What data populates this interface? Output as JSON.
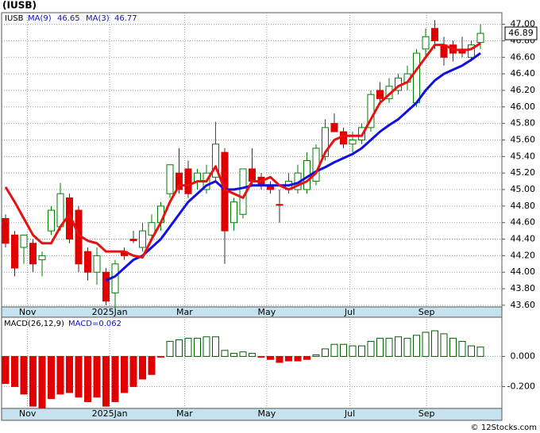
{
  "title": "(IUSB)",
  "watermark": "© 12Stocks.com",
  "chart_data": [
    {
      "type": "candlestick",
      "symbol": "IUSB",
      "last_price": 46.89,
      "ma_legend": [
        {
          "label": "MA(9)",
          "value": 46.65
        },
        {
          "label": "MA(3)",
          "value": 46.77
        }
      ],
      "open": [
        44.65,
        44.45,
        44.3,
        44.35,
        44.15,
        44.5,
        44.55,
        44.9,
        44.75,
        44.25,
        44.0,
        44.0,
        43.75,
        44.25,
        44.4,
        44.3,
        44.45,
        44.6,
        44.95,
        45.2,
        45.25,
        45.1,
        45.0,
        45.15,
        45.45,
        44.6,
        44.7,
        45.25,
        45.15,
        45.05,
        44.82,
        45.0,
        45.0,
        45.0,
        45.1,
        45.4,
        45.8,
        45.7,
        45.55,
        45.6,
        45.75,
        46.2,
        46.1,
        46.2,
        46.3,
        46.05,
        46.7,
        46.95,
        46.75,
        46.75,
        46.7,
        46.6,
        46.78
      ],
      "high": [
        44.7,
        44.5,
        44.45,
        44.4,
        44.25,
        44.8,
        45.08,
        44.95,
        44.8,
        44.3,
        44.3,
        44.05,
        44.15,
        44.3,
        44.5,
        44.6,
        44.7,
        44.85,
        45.3,
        45.5,
        45.35,
        45.25,
        45.3,
        45.82,
        45.5,
        44.9,
        45.25,
        45.5,
        45.2,
        45.1,
        45.0,
        45.2,
        45.3,
        45.45,
        45.55,
        45.85,
        45.92,
        45.75,
        45.7,
        45.8,
        46.2,
        46.3,
        46.35,
        46.4,
        46.5,
        46.7,
        46.95,
        47.05,
        46.85,
        46.8,
        46.85,
        46.8,
        47.0
      ],
      "low": [
        44.3,
        43.95,
        44.1,
        44.0,
        43.95,
        44.45,
        44.5,
        44.35,
        44.0,
        43.9,
        43.85,
        43.6,
        43.55,
        44.15,
        44.35,
        44.25,
        44.4,
        44.5,
        44.9,
        44.95,
        44.9,
        45.0,
        44.95,
        45.1,
        44.1,
        44.5,
        44.65,
        45.05,
        45.0,
        44.95,
        44.6,
        44.95,
        44.95,
        44.95,
        45.05,
        45.35,
        45.7,
        45.5,
        45.45,
        45.55,
        45.7,
        46.05,
        46.05,
        46.15,
        46.2,
        46.0,
        46.6,
        46.7,
        46.5,
        46.55,
        46.6,
        46.55,
        46.7
      ],
      "close": [
        44.35,
        44.05,
        44.45,
        44.1,
        44.2,
        44.75,
        44.95,
        44.4,
        44.1,
        44.0,
        44.2,
        43.65,
        44.1,
        44.2,
        44.38,
        44.5,
        44.6,
        44.8,
        45.3,
        45.0,
        44.95,
        45.2,
        45.2,
        45.55,
        44.5,
        44.85,
        45.25,
        45.1,
        45.05,
        45.0,
        44.81,
        45.1,
        45.2,
        45.35,
        45.5,
        45.75,
        45.7,
        45.55,
        45.6,
        45.75,
        46.15,
        46.1,
        46.25,
        46.35,
        46.4,
        46.65,
        46.85,
        46.8,
        46.6,
        46.65,
        46.65,
        46.75,
        46.89
      ],
      "up_color": "#008000",
      "down_color": "#e00000",
      "series": [
        {
          "name": "MA(9)",
          "color": "#1010e0",
          "values": [
            null,
            null,
            null,
            null,
            null,
            null,
            null,
            null,
            null,
            null,
            null,
            43.9,
            43.95,
            44.05,
            44.15,
            44.2,
            44.3,
            44.4,
            44.55,
            44.7,
            44.85,
            44.95,
            45.05,
            45.1,
            45.0,
            45.0,
            45.02,
            45.05,
            45.05,
            45.05,
            45.05,
            45.05,
            45.08,
            45.15,
            45.22,
            45.27,
            45.33,
            45.38,
            45.43,
            45.5,
            45.6,
            45.7,
            45.78,
            45.85,
            45.95,
            46.05,
            46.2,
            46.32,
            46.4,
            46.45,
            46.5,
            46.57,
            46.65
          ]
        },
        {
          "name": "MA(3)",
          "color": "#e81010",
          "values": [
            45.03,
            44.85,
            44.65,
            44.45,
            44.35,
            44.35,
            44.55,
            44.7,
            44.45,
            44.38,
            44.35,
            44.25,
            44.25,
            44.25,
            44.2,
            44.18,
            44.4,
            44.6,
            44.85,
            45.05,
            45.05,
            45.1,
            45.1,
            45.28,
            45.0,
            44.95,
            44.9,
            45.1,
            45.1,
            45.15,
            45.05,
            45.0,
            45.05,
            45.1,
            45.2,
            45.45,
            45.6,
            45.65,
            45.65,
            45.65,
            45.85,
            46.05,
            46.15,
            46.25,
            46.3,
            46.45,
            46.6,
            46.75,
            46.75,
            46.7,
            46.68,
            46.7,
            46.77
          ]
        }
      ],
      "ylim": [
        43.58,
        47.14
      ],
      "yticks": [
        {
          "value": 43.6,
          "label": "43.60"
        },
        {
          "value": 43.8,
          "label": "43.80"
        },
        {
          "value": 44.0,
          "label": "44.00"
        },
        {
          "value": 44.2,
          "label": "44.20"
        },
        {
          "value": 44.4,
          "label": "44.40"
        },
        {
          "value": 44.6,
          "label": "44.60"
        },
        {
          "value": 44.8,
          "label": "44.80"
        },
        {
          "value": 45.0,
          "label": "45.00"
        },
        {
          "value": 45.2,
          "label": "45.20"
        },
        {
          "value": 45.4,
          "label": "45.40"
        },
        {
          "value": 45.6,
          "label": "45.60"
        },
        {
          "value": 45.8,
          "label": "45.80"
        },
        {
          "value": 46.0,
          "label": "46.00"
        },
        {
          "value": 46.2,
          "label": "46.20"
        },
        {
          "value": 46.4,
          "label": "46.40"
        },
        {
          "value": 46.6,
          "label": "46.60"
        },
        {
          "value": 46.8,
          "label": "46.80"
        },
        {
          "value": 47.0,
          "label": "47.00"
        }
      ],
      "xticks": [
        {
          "value": 2.4,
          "label": "Nov"
        },
        {
          "value": 11.4,
          "label": "2025Jan"
        },
        {
          "value": 19.6,
          "label": "Mar"
        },
        {
          "value": 28.6,
          "label": "May"
        },
        {
          "value": 37.7,
          "label": "Jul"
        },
        {
          "value": 46.1,
          "label": "Sep"
        }
      ],
      "grid": true
    },
    {
      "type": "bar",
      "title": "MACD(26,12,9)",
      "value_text": "MACD=0.062",
      "up_color": "#006000",
      "down_color": "#e00000",
      "values": [
        -0.18,
        -0.2,
        -0.25,
        -0.33,
        -0.34,
        -0.28,
        -0.25,
        -0.24,
        -0.27,
        -0.3,
        -0.27,
        -0.33,
        -0.3,
        -0.24,
        -0.2,
        -0.15,
        -0.12,
        -0.005,
        0.1,
        0.11,
        0.12,
        0.12,
        0.13,
        0.13,
        0.04,
        0.02,
        0.03,
        0.02,
        -0.005,
        -0.02,
        -0.04,
        -0.03,
        -0.03,
        -0.02,
        0.01,
        0.05,
        0.08,
        0.08,
        0.07,
        0.07,
        0.1,
        0.12,
        0.12,
        0.13,
        0.12,
        0.14,
        0.16,
        0.17,
        0.15,
        0.12,
        0.1,
        0.07,
        0.062
      ],
      "ylim": [
        -0.345,
        0.26
      ],
      "yticks": [
        {
          "value": 0,
          "label": "0.000"
        },
        {
          "value": -0.2,
          "label": "-0.200"
        }
      ],
      "grid": true
    }
  ]
}
